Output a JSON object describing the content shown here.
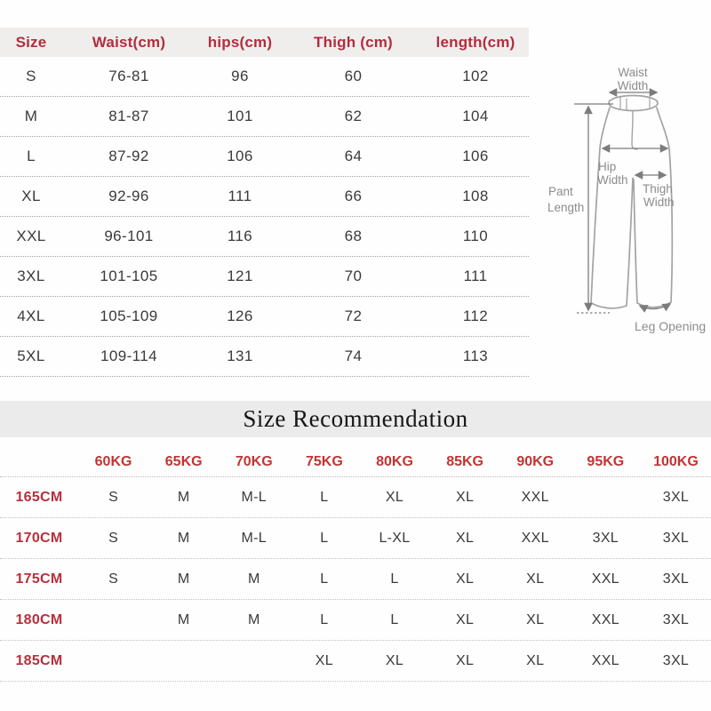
{
  "colors": {
    "header_red": "#b12e3f",
    "accent_red": "#c23434",
    "height_red": "#b8303c",
    "text": "#3a3a3a",
    "header_bg": "#efeeec",
    "banner_bg": "#ebebeb",
    "diagram_gray": "#8c8c8c"
  },
  "size_table": {
    "headers": [
      "Size",
      "Waist(cm)",
      "hips(cm)",
      "Thigh (cm)",
      "length(cm)"
    ],
    "rows": [
      [
        "S",
        "76-81",
        "96",
        "60",
        "102"
      ],
      [
        "M",
        "81-87",
        "101",
        "62",
        "104"
      ],
      [
        "L",
        "87-92",
        "106",
        "64",
        "106"
      ],
      [
        "XL",
        "92-96",
        "111",
        "66",
        "108"
      ],
      [
        "XXL",
        "96-101",
        "116",
        "68",
        "110"
      ],
      [
        "3XL",
        "101-105",
        "121",
        "70",
        "111"
      ],
      [
        "4XL",
        "105-109",
        "126",
        "72",
        "112"
      ],
      [
        "5XL",
        "109-114",
        "131",
        "74",
        "113"
      ]
    ]
  },
  "diagram": {
    "labels": {
      "waist_line1": "Waist",
      "waist_line2": "Width",
      "hip_line1": "Hip",
      "hip_line2": "Width",
      "thigh_line1": "Thigh",
      "thigh_line2": "Width",
      "pant_line1": "Pant",
      "pant_line2": "Length",
      "leg_opening": "Leg Opening"
    }
  },
  "recommendation": {
    "title": "Size Recommendation",
    "weight_headers": [
      "60KG",
      "65KG",
      "70KG",
      "75KG",
      "80KG",
      "85KG",
      "90KG",
      "95KG",
      "100KG"
    ],
    "rows": [
      {
        "height": "165CM",
        "values": [
          "S",
          "M",
          "M-L",
          "L",
          "XL",
          "XL",
          "XXL",
          "",
          "3XL"
        ]
      },
      {
        "height": "170CM",
        "values": [
          "S",
          "M",
          "M-L",
          "L",
          "L-XL",
          "XL",
          "XXL",
          "3XL",
          "3XL"
        ]
      },
      {
        "height": "175CM",
        "values": [
          "S",
          "M",
          "M",
          "L",
          "L",
          "XL",
          "XL",
          "XXL",
          "3XL"
        ]
      },
      {
        "height": "180CM",
        "values": [
          "",
          "M",
          "M",
          "L",
          "L",
          "XL",
          "XL",
          "XXL",
          "3XL"
        ]
      },
      {
        "height": "185CM",
        "values": [
          "",
          "",
          "",
          "XL",
          "XL",
          "XL",
          "XL",
          "XXL",
          "3XL"
        ]
      }
    ]
  }
}
